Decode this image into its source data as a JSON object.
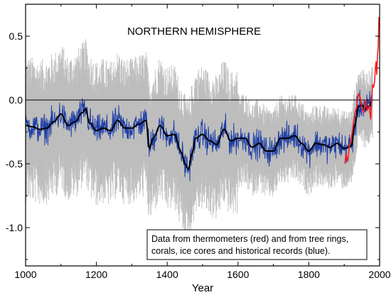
{
  "chart_data": {
    "type": "line",
    "title": "NORTHERN HEMISPHERE",
    "xlabel": "Year",
    "ylabel": "",
    "xlim": [
      1000,
      2000
    ],
    "ylim": [
      -1.3,
      0.75
    ],
    "x_ticks": [
      1000,
      1200,
      1400,
      1600,
      1800,
      2000
    ],
    "x_tick_labels": [
      "1000",
      "1200",
      "1400",
      "1600",
      "1800",
      "2000"
    ],
    "y_ticks": [
      0.5,
      0.0,
      -0.5,
      -1.0
    ],
    "y_tick_labels": [
      "0.5",
      "0.0",
      "-0.5",
      "-1.0"
    ],
    "zero_line": 0.0,
    "grid": false,
    "annotation": {
      "line1": "Data from thermometers (red) and from tree rings,",
      "line2": "corals, ice cores and historical records (blue)."
    },
    "colors": {
      "uncertainty": "#bdbdbd",
      "reconstruction": "#1f3fa6",
      "smoothed": "#000000",
      "instrumental": "#ff1a1a"
    },
    "series": [
      {
        "key": "smoothed",
        "x": [
          1000,
          1020,
          1040,
          1060,
          1080,
          1100,
          1120,
          1140,
          1160,
          1170,
          1180,
          1200,
          1220,
          1240,
          1260,
          1280,
          1300,
          1320,
          1340,
          1350,
          1360,
          1380,
          1400,
          1420,
          1440,
          1450,
          1460,
          1470,
          1480,
          1500,
          1520,
          1540,
          1560,
          1580,
          1600,
          1620,
          1640,
          1660,
          1680,
          1700,
          1720,
          1740,
          1760,
          1780,
          1800,
          1820,
          1840,
          1860,
          1880,
          1900,
          1920,
          1930,
          1940,
          1950,
          1960,
          1970,
          1980
        ],
        "y": [
          -0.2,
          -0.21,
          -0.23,
          -0.22,
          -0.17,
          -0.11,
          -0.2,
          -0.17,
          -0.1,
          -0.07,
          -0.18,
          -0.24,
          -0.22,
          -0.24,
          -0.16,
          -0.22,
          -0.22,
          -0.19,
          -0.16,
          -0.38,
          -0.3,
          -0.2,
          -0.28,
          -0.27,
          -0.41,
          -0.5,
          -0.54,
          -0.42,
          -0.3,
          -0.27,
          -0.32,
          -0.35,
          -0.23,
          -0.32,
          -0.3,
          -0.3,
          -0.37,
          -0.34,
          -0.4,
          -0.4,
          -0.3,
          -0.3,
          -0.28,
          -0.34,
          -0.4,
          -0.34,
          -0.35,
          -0.37,
          -0.34,
          -0.38,
          -0.36,
          -0.2,
          -0.05,
          -0.04,
          -0.07,
          -0.05,
          0.0
        ]
      },
      {
        "key": "instrumental",
        "x": [
          1902,
          1905,
          1910,
          1915,
          1920,
          1925,
          1930,
          1935,
          1940,
          1945,
          1950,
          1955,
          1960,
          1965,
          1970,
          1975,
          1980,
          1983,
          1986,
          1988,
          1990,
          1992,
          1994,
          1996,
          1998
        ],
        "y": [
          -0.5,
          -0.42,
          -0.48,
          -0.35,
          -0.3,
          -0.2,
          -0.1,
          -0.06,
          0.05,
          0.02,
          -0.06,
          -0.1,
          0.0,
          -0.08,
          -0.05,
          -0.15,
          0.12,
          0.1,
          0.15,
          0.25,
          0.3,
          0.2,
          0.35,
          0.42,
          0.65
        ]
      }
    ]
  }
}
